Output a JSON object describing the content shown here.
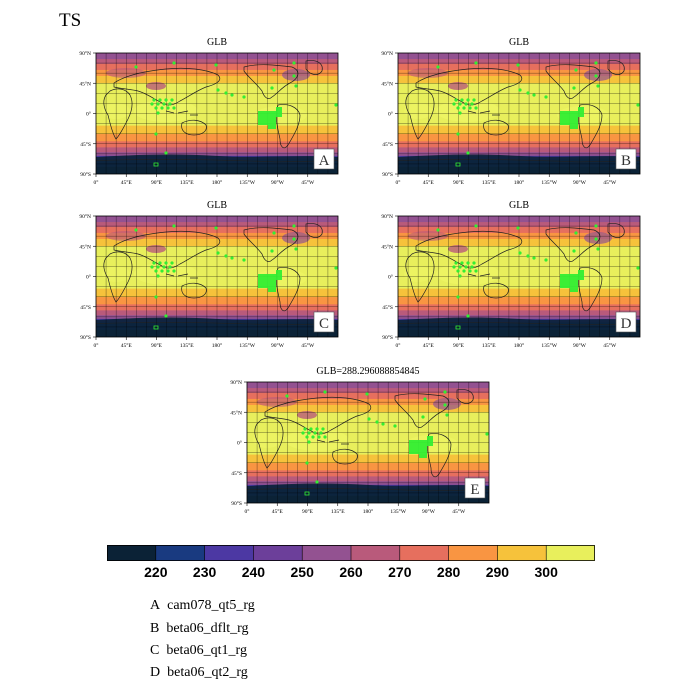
{
  "figure": {
    "variable": "TS"
  },
  "panels": [
    {
      "id": "A",
      "title": "GLB"
    },
    {
      "id": "B",
      "title": "GLB"
    },
    {
      "id": "C",
      "title": "GLB"
    },
    {
      "id": "D",
      "title": "GLB"
    },
    {
      "id": "E",
      "title": "GLB=288.296088854845"
    }
  ],
  "axes": {
    "lat_ticks": [
      "90°N",
      "45°N",
      "0°",
      "45°S",
      "90°S"
    ],
    "lon_ticks": [
      "0°",
      "45°E",
      "90°E",
      "135°E",
      "180°",
      "135°W",
      "90°W",
      "45°W"
    ]
  },
  "colorbar": {
    "colors": [
      "#0b2236",
      "#193a80",
      "#4c38a3",
      "#6c3f9a",
      "#935291",
      "#b95a7b",
      "#e66f5e",
      "#f99542",
      "#f6c23b",
      "#e8ef5c"
    ],
    "labels": [
      "220",
      "230",
      "240",
      "250",
      "260",
      "270",
      "280",
      "290",
      "300"
    ],
    "range": [
      210,
      310
    ]
  },
  "legend": [
    {
      "letter": "A",
      "name": "cam078_qt5_rg"
    },
    {
      "letter": "B",
      "name": "beta06_dflt_rg"
    },
    {
      "letter": "C",
      "name": "beta06_qt1_rg"
    },
    {
      "letter": "D",
      "name": "beta06_qt2_rg"
    }
  ],
  "map_style": {
    "land_outline": "#222222",
    "grid_color": "#000000",
    "marker_color": "#33ee33"
  }
}
